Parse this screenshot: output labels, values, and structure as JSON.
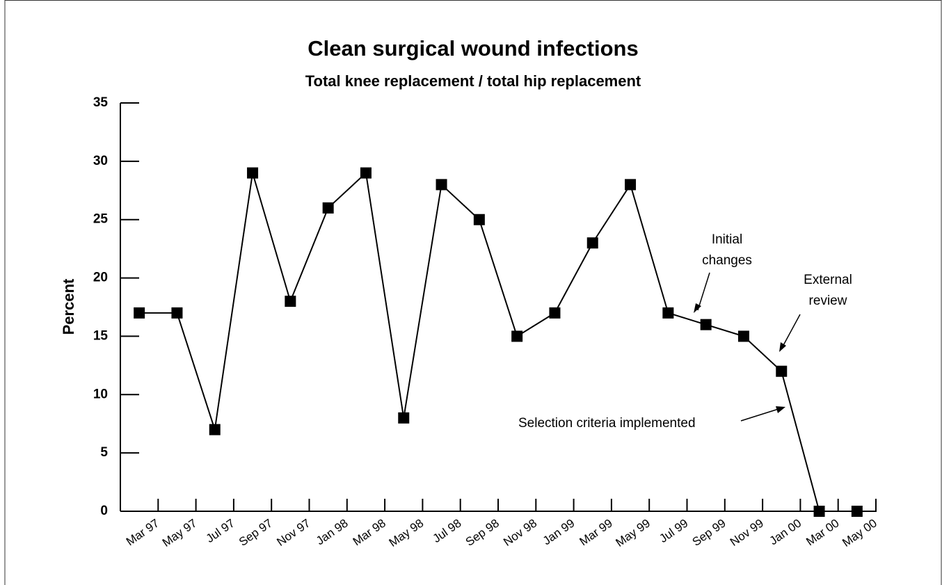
{
  "chart_data": {
    "type": "line",
    "title": "Clean surgical wound infections",
    "subtitle": "Total knee replacement / total hip replacement",
    "y_label": "Percent",
    "categories": [
      "Mar 97",
      "May 97",
      "Jul 97",
      "Sep 97",
      "Nov 97",
      "Jan 98",
      "Mar 98",
      "May 98",
      "Jul 98",
      "Sep 98",
      "Nov 98",
      "Jan 99",
      "Mar 99",
      "May 99",
      "Jul 99",
      "Sep 99",
      "Nov 99",
      "Jan 00",
      "Mar 00",
      "May 00"
    ],
    "values": [
      17,
      17,
      7,
      29,
      18,
      26,
      29,
      8,
      28,
      25,
      15,
      17,
      23,
      28,
      17,
      16,
      15,
      12,
      0,
      0
    ],
    "color": "#000000",
    "ylim": [
      0,
      35
    ],
    "yticks": [
      0,
      5,
      10,
      15,
      20,
      25,
      30,
      35
    ],
    "annotations": [
      {
        "lines": [
          "Initial",
          "changes"
        ]
      },
      {
        "lines": [
          "External",
          "review"
        ]
      },
      {
        "lines": [
          "Selection criteria implemented"
        ]
      }
    ]
  }
}
